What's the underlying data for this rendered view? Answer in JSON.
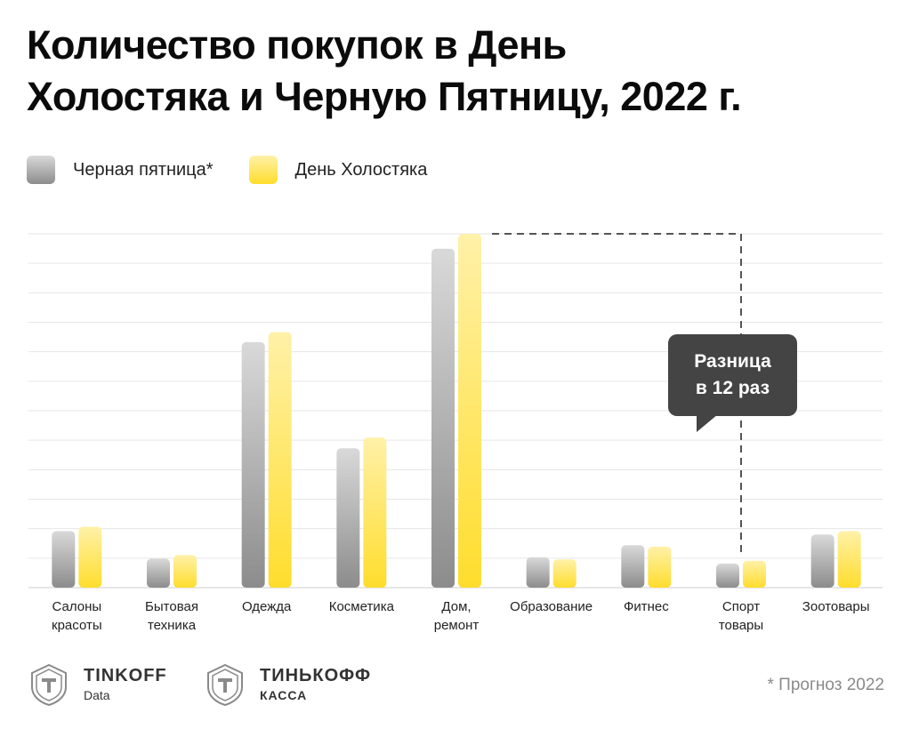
{
  "title_line1": "Количество покупок в День",
  "title_line2": "Холостяка и Черную Пятницу, 2022 г.",
  "legend": {
    "black_friday": "Черная пятница*",
    "singles_day": "День Холостяка"
  },
  "callout": {
    "line1": "Разница",
    "line2": "в 12 раз"
  },
  "logos": {
    "tinkoff_data_main": "TINKOFF",
    "tinkoff_data_sub": "Data",
    "tinkoff_kassa_main": "ТИНЬКОФФ",
    "tinkoff_kassa_sub": "КАССА"
  },
  "footnote": "* Прогноз 2022",
  "colors": {
    "gray_top": "#d9d9d9",
    "gray_bottom": "#8c8c8c",
    "yellow_top": "#fff1a8",
    "yellow_bottom": "#ffdd2d",
    "callout_bg": "#444444",
    "grid": "#e6e6e6"
  },
  "chart_data": {
    "type": "bar",
    "categories": [
      [
        "Салоны",
        "красоты"
      ],
      [
        "Бытовая",
        "техника"
      ],
      [
        "Одежда"
      ],
      [
        "Косметика"
      ],
      [
        "Дом,",
        "ремонт"
      ],
      [
        "Образование"
      ],
      [
        "Фитнес"
      ],
      [
        "Спорт",
        "товары"
      ],
      [
        "Зоотовары"
      ]
    ],
    "series": [
      {
        "name": "Черная пятница*",
        "values": [
          16.0,
          8.2,
          69.4,
          39.4,
          95.8,
          8.6,
          12.0,
          6.8,
          15.0
        ]
      },
      {
        "name": "День Холостяка",
        "values": [
          17.2,
          9.2,
          72.2,
          42.4,
          100.0,
          8.0,
          11.6,
          7.6,
          16.0
        ]
      }
    ],
    "ylim": [
      0,
      100
    ],
    "grid": true,
    "gridlines": 12,
    "legend_position": "top-left"
  }
}
